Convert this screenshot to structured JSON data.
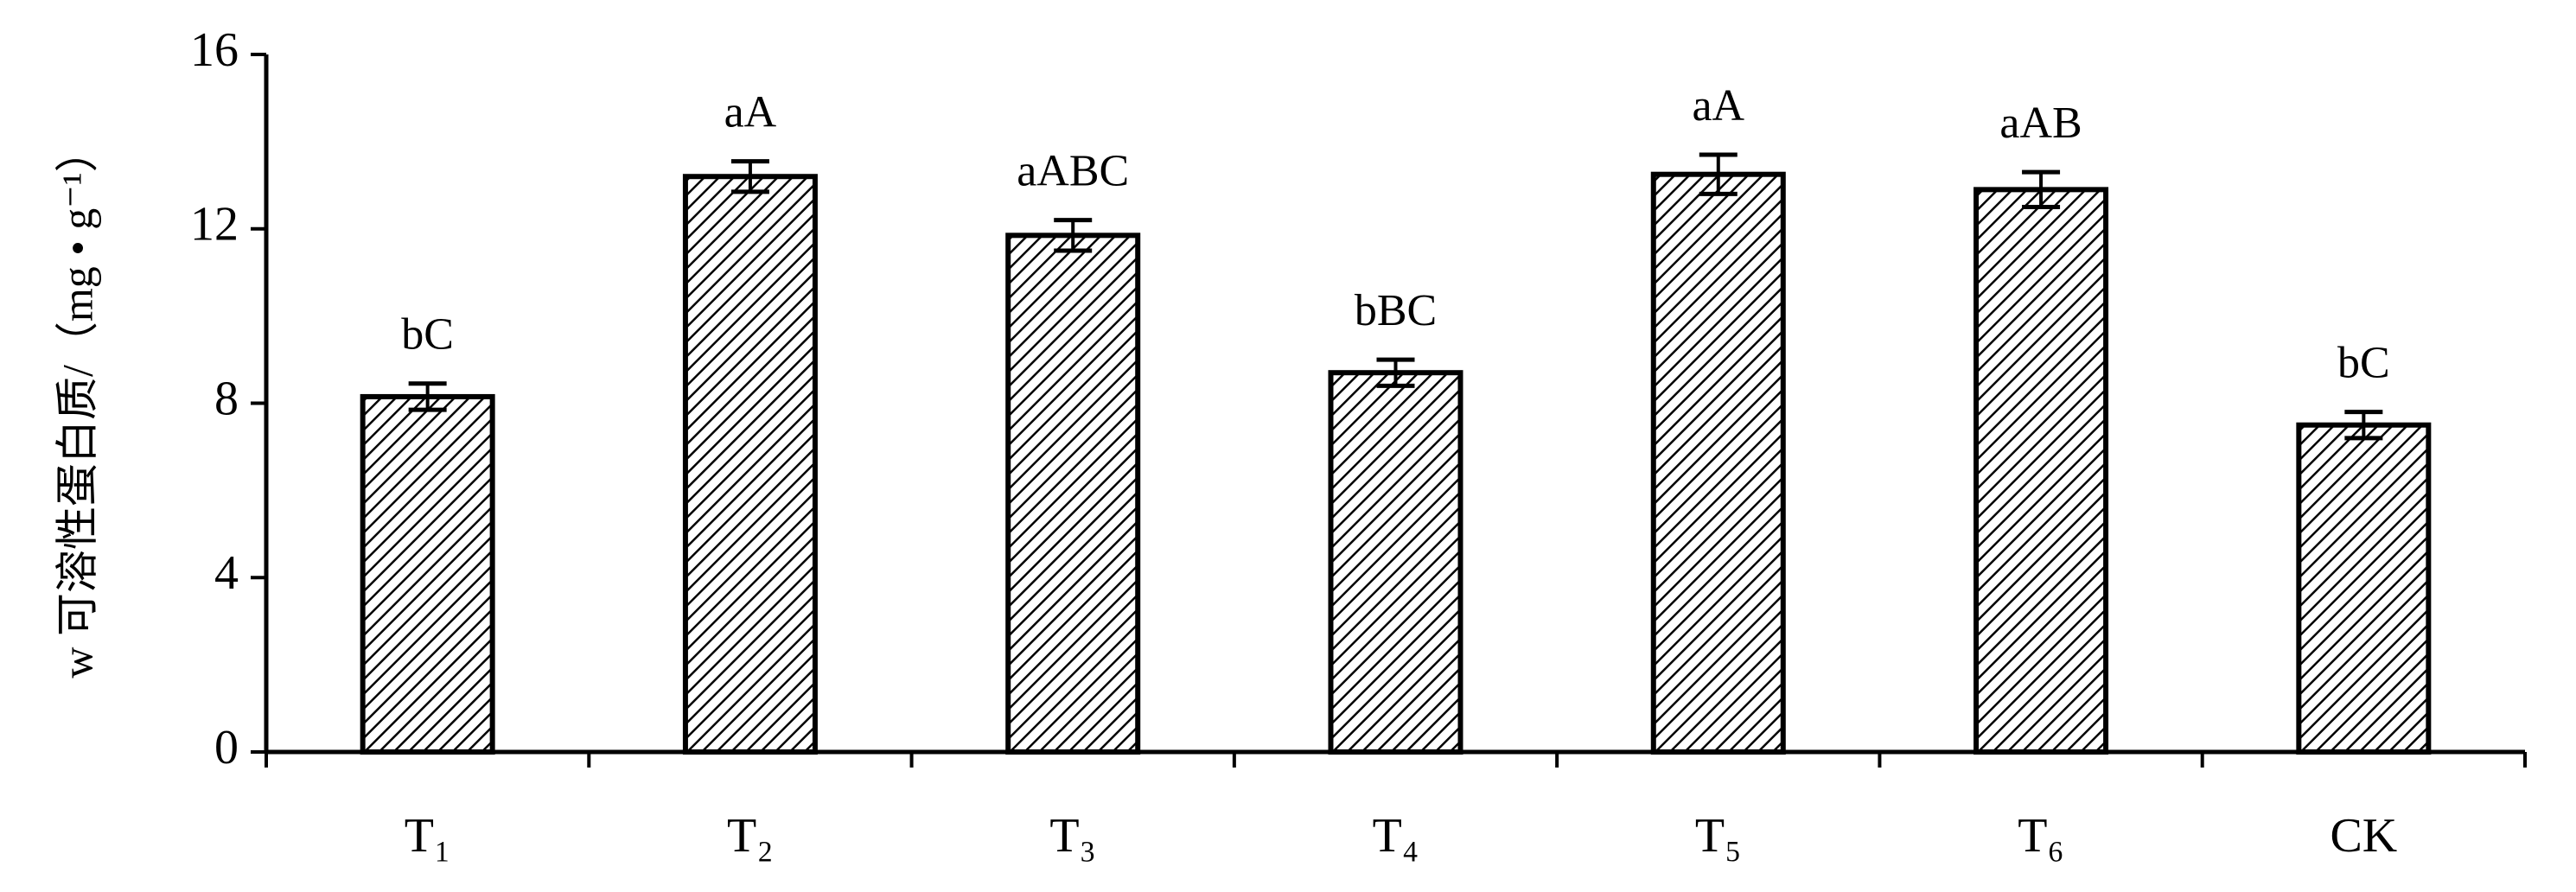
{
  "chart_data": {
    "type": "bar",
    "y_label": "w 可溶性蛋白质/（mg • g⁻¹）",
    "categories": [
      "T₁",
      "T₂",
      "T₃",
      "T₄",
      "T₅",
      "T₆",
      "CK"
    ],
    "values": [
      8.15,
      13.2,
      11.85,
      8.7,
      13.25,
      12.9,
      7.5
    ],
    "errors": [
      0.3,
      0.35,
      0.35,
      0.3,
      0.45,
      0.4,
      0.3
    ],
    "annotations": [
      "bC",
      "aA",
      "aABC",
      "bBC",
      "aA",
      "aAB",
      "bC"
    ],
    "color": "#000000",
    "ylim": [
      0,
      16
    ],
    "yticks": [
      0,
      4,
      8,
      12,
      16
    ],
    "grid": false
  }
}
